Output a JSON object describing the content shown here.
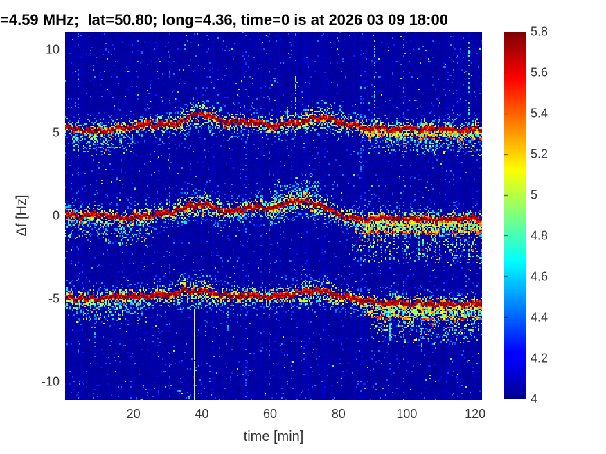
{
  "title": "=4.59 MHz;  lat=50.80; long=4.36, time=0 is at 2026 03 09 18:00",
  "chart_data": {
    "type": "heatmap",
    "title": "=4.59 MHz;  lat=50.80; long=4.36, time=0 is at 2026 03 09 18:00",
    "xlabel": "time [min]",
    "ylabel": "Δf [Hz]",
    "xlim": [
      0,
      122
    ],
    "ylim": [
      -11.1,
      11.1
    ],
    "x_ticks": [
      20,
      40,
      60,
      80,
      100,
      120
    ],
    "y_ticks": [
      10,
      5,
      0,
      -5,
      -10
    ],
    "grid": false,
    "colorbar": {
      "colormap": "jet",
      "min": 4,
      "max": 5.8,
      "ticks": [
        5.8,
        5.6,
        5.4,
        5.2,
        5,
        4.8,
        4.6,
        4.4,
        4.2,
        4
      ],
      "position": "right"
    },
    "background_value": 4.03,
    "description": "HF Doppler shift spectrogram: three narrow spectral traces near +5, 0 and -5 Hz over 122 minutes, dark-red cores with yellow/cyan speckle fringes on a dark blue noise background; traces broaden and split after ~85 min.",
    "bands": [
      {
        "name": "upper-trace",
        "center": [
          [
            0,
            5.35
          ],
          [
            4,
            5.25
          ],
          [
            8,
            5.12
          ],
          [
            12,
            5.2
          ],
          [
            16,
            5.3
          ],
          [
            20,
            5.42
          ],
          [
            24,
            5.5
          ],
          [
            28,
            5.52
          ],
          [
            32,
            5.62
          ],
          [
            35,
            5.8
          ],
          [
            38,
            6.18
          ],
          [
            40,
            6.22
          ],
          [
            42,
            6.05
          ],
          [
            45,
            5.85
          ],
          [
            48,
            5.7
          ],
          [
            51,
            5.65
          ],
          [
            54,
            5.7
          ],
          [
            57,
            5.62
          ],
          [
            60,
            5.5
          ],
          [
            63,
            5.58
          ],
          [
            66,
            5.62
          ],
          [
            69,
            5.72
          ],
          [
            72,
            5.9
          ],
          [
            75,
            6.0
          ],
          [
            77,
            5.95
          ],
          [
            80,
            5.72
          ],
          [
            83,
            5.55
          ],
          [
            86,
            5.38
          ],
          [
            89,
            5.32
          ],
          [
            92,
            5.4
          ],
          [
            95,
            5.3
          ],
          [
            98,
            5.28
          ],
          [
            101,
            5.32
          ],
          [
            104,
            5.22
          ],
          [
            107,
            5.3
          ],
          [
            110,
            5.26
          ],
          [
            113,
            5.22
          ],
          [
            116,
            5.18
          ],
          [
            119,
            5.28
          ],
          [
            122,
            5.22
          ]
        ],
        "widen": [
          [
            34,
            46
          ],
          [
            70,
            81
          ]
        ],
        "scatter_below": [
          [
            2,
            20,
            1.4
          ]
        ],
        "tail": {
          "from": 86,
          "secondary_offset": -0.5,
          "secondary_strength": 0.45,
          "scatter_depth": 1.5,
          "comb": false
        }
      },
      {
        "name": "center-trace",
        "center": [
          [
            0,
            0.18
          ],
          [
            4,
            0.02
          ],
          [
            8,
            0.15
          ],
          [
            12,
            0.05
          ],
          [
            16,
            -0.05
          ],
          [
            20,
            -0.08
          ],
          [
            24,
            0.08
          ],
          [
            28,
            0.18
          ],
          [
            32,
            0.32
          ],
          [
            35,
            0.5
          ],
          [
            38,
            0.68
          ],
          [
            41,
            0.72
          ],
          [
            44,
            0.5
          ],
          [
            47,
            0.3
          ],
          [
            50,
            0.35
          ],
          [
            53,
            0.5
          ],
          [
            56,
            0.6
          ],
          [
            59,
            0.5
          ],
          [
            62,
            0.62
          ],
          [
            65,
            0.85
          ],
          [
            68,
            0.95
          ],
          [
            71,
            0.88
          ],
          [
            74,
            0.72
          ],
          [
            77,
            0.45
          ],
          [
            80,
            0.15
          ],
          [
            83,
            -0.05
          ],
          [
            86,
            -0.12
          ],
          [
            90,
            -0.15
          ],
          [
            94,
            -0.08
          ],
          [
            98,
            -0.18
          ],
          [
            102,
            -0.12
          ],
          [
            106,
            -0.2
          ],
          [
            110,
            -0.15
          ],
          [
            114,
            -0.18
          ],
          [
            118,
            -0.1
          ],
          [
            122,
            -0.12
          ]
        ],
        "widen": [
          [
            33,
            46
          ],
          [
            60,
            76
          ]
        ],
        "scatter_below": [
          [
            0,
            26,
            1.6
          ]
        ],
        "cloud_above": [
          60,
          74,
          1.7
        ],
        "tail": {
          "from": 83,
          "secondary_offset": -0.8,
          "secondary_strength": 0.75,
          "scatter_depth": 2.6,
          "comb": true
        }
      },
      {
        "name": "lower-trace",
        "center": [
          [
            0,
            -4.85
          ],
          [
            4,
            -4.92
          ],
          [
            8,
            -4.95
          ],
          [
            12,
            -4.88
          ],
          [
            16,
            -4.8
          ],
          [
            20,
            -4.85
          ],
          [
            24,
            -4.8
          ],
          [
            28,
            -4.72
          ],
          [
            32,
            -4.62
          ],
          [
            35,
            -4.5
          ],
          [
            38,
            -4.42
          ],
          [
            41,
            -4.52
          ],
          [
            44,
            -4.65
          ],
          [
            47,
            -4.75
          ],
          [
            50,
            -4.8
          ],
          [
            53,
            -4.75
          ],
          [
            56,
            -4.8
          ],
          [
            59,
            -4.82
          ],
          [
            62,
            -4.78
          ],
          [
            65,
            -4.7
          ],
          [
            68,
            -4.6
          ],
          [
            71,
            -4.5
          ],
          [
            74,
            -4.45
          ],
          [
            77,
            -4.55
          ],
          [
            80,
            -4.72
          ],
          [
            83,
            -4.9
          ],
          [
            86,
            -5.02
          ],
          [
            90,
            -5.12
          ],
          [
            94,
            -5.22
          ],
          [
            98,
            -5.18
          ],
          [
            102,
            -5.28
          ],
          [
            106,
            -5.25
          ],
          [
            110,
            -5.3
          ],
          [
            114,
            -5.26
          ],
          [
            118,
            -5.22
          ],
          [
            122,
            -5.26
          ]
        ],
        "widen": [
          [
            33,
            45
          ],
          [
            68,
            80
          ]
        ],
        "scatter_below": [
          [
            2,
            24,
            1.5
          ]
        ],
        "tail": {
          "from": 87,
          "secondary_offset": -0.9,
          "secondary_strength": 0.6,
          "scatter_depth": 2.3,
          "comb": false
        }
      }
    ],
    "streaks": [
      {
        "t": 37.6,
        "f_top": -5.4,
        "f_bottom": -11.1,
        "value": 4.95,
        "density": 0.95
      },
      {
        "t": 64.8,
        "f_top": 6.7,
        "f_bottom": 5.9,
        "value": 4.7,
        "density": 0.6
      },
      {
        "t": 67.3,
        "f_top": 8.4,
        "f_bottom": 6.0,
        "value": 4.75,
        "density": 0.55
      },
      {
        "t": 90.5,
        "f_top": 10.8,
        "f_bottom": 5.6,
        "value": 4.55,
        "density": 0.35
      },
      {
        "t": 118.0,
        "f_top": 10.5,
        "f_bottom": 5.6,
        "value": 4.55,
        "density": 0.35
      },
      {
        "t": 8.5,
        "f_top": -5.2,
        "f_bottom": -8.0,
        "value": 4.45,
        "density": 0.3
      },
      {
        "t": 47.5,
        "f_top": -4.9,
        "f_bottom": -7.0,
        "value": 4.45,
        "density": 0.3
      },
      {
        "t": 95.0,
        "f_top": -5.6,
        "f_bottom": -7.5,
        "value": 4.5,
        "density": 0.4
      },
      {
        "t": 104.0,
        "f_top": -5.6,
        "f_bottom": -8.2,
        "value": 4.5,
        "density": 0.35
      }
    ],
    "faint_columns": [
      3.5,
      30.2,
      52.8,
      59.5,
      66.2,
      86.2,
      99.0,
      113.5
    ]
  }
}
